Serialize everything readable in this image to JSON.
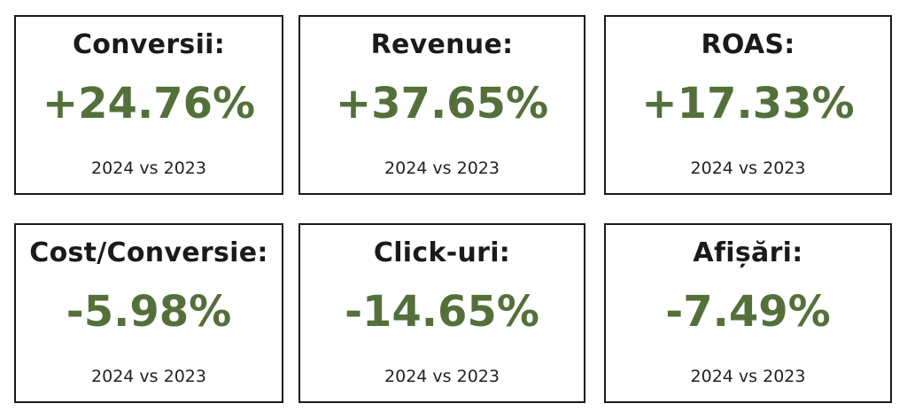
{
  "cards": [
    {
      "title": "Conversii:",
      "value": "+24.76%",
      "subtitle": "2024 vs 2023"
    },
    {
      "title": "Revenue:",
      "value": "+37.65%",
      "subtitle": "2024 vs 2023"
    },
    {
      "title": "ROAS:",
      "value": "+17.33%",
      "subtitle": "2024 vs 2023"
    },
    {
      "title": "Cost/Conversie:",
      "value": "-5.98%",
      "subtitle": "2024 vs 2023"
    },
    {
      "title": "Click-uri:",
      "value": "-14.65%",
      "subtitle": "2024 vs 2023"
    },
    {
      "title": "Afișări:",
      "value": "-7.49%",
      "subtitle": "2024 vs 2023"
    }
  ]
}
